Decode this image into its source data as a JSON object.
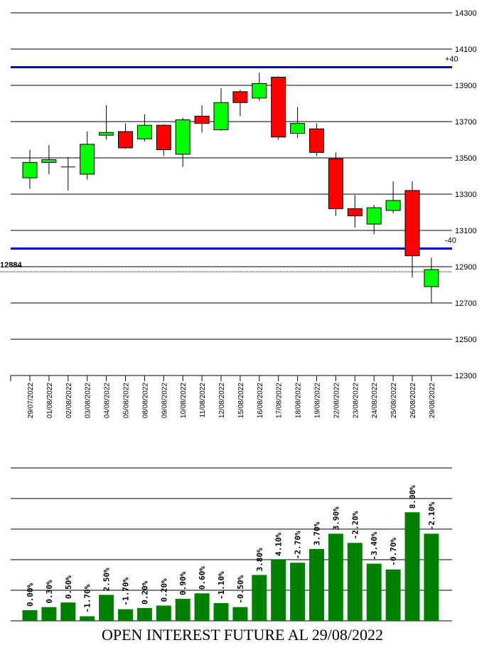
{
  "chart_data": [
    {
      "type": "candlestick",
      "title": "",
      "ylim": [
        12300,
        14300
      ],
      "yticks": [
        14300,
        14100,
        13900,
        13700,
        13500,
        13300,
        13100,
        12900,
        12700,
        12500,
        12300
      ],
      "dates": [
        "29/07/2022",
        "01/08/2022",
        "02/08/2022",
        "03/08/2022",
        "04/08/2022",
        "05/08/2022",
        "08/08/2022",
        "09/08/2022",
        "10/08/2022",
        "11/08/2022",
        "12/08/2022",
        "15/08/2022",
        "16/08/2022",
        "17/08/2022",
        "18/08/2022",
        "19/08/2022",
        "22/08/2022",
        "23/08/2022",
        "24/08/2022",
        "25/08/2022",
        "26/08/2022",
        "29/08/2022"
      ],
      "candles": [
        {
          "open": 13390,
          "high": 13545,
          "low": 13330,
          "close": 13475,
          "color": "#00ff00"
        },
        {
          "open": 13475,
          "high": 13570,
          "low": 13410,
          "close": 13490,
          "color": "#00ff00"
        },
        {
          "open": 13450,
          "high": 13505,
          "low": 13320,
          "close": 13450,
          "color": "#000000"
        },
        {
          "open": 13410,
          "high": 13645,
          "low": 13380,
          "close": 13575,
          "color": "#00ff00"
        },
        {
          "open": 13625,
          "high": 13790,
          "low": 13600,
          "close": 13640,
          "color": "#00ff00"
        },
        {
          "open": 13645,
          "high": 13690,
          "low": 13550,
          "close": 13555,
          "color": "#ff0000"
        },
        {
          "open": 13605,
          "high": 13740,
          "low": 13590,
          "close": 13680,
          "color": "#00ff00"
        },
        {
          "open": 13680,
          "high": 13685,
          "low": 13510,
          "close": 13545,
          "color": "#ff0000"
        },
        {
          "open": 13520,
          "high": 13720,
          "low": 13450,
          "close": 13710,
          "color": "#00ff00"
        },
        {
          "open": 13730,
          "high": 13790,
          "low": 13640,
          "close": 13690,
          "color": "#ff0000"
        },
        {
          "open": 13655,
          "high": 13885,
          "low": 13650,
          "close": 13805,
          "color": "#00ff00"
        },
        {
          "open": 13865,
          "high": 13875,
          "low": 13730,
          "close": 13805,
          "color": "#ff0000"
        },
        {
          "open": 13830,
          "high": 13970,
          "low": 13815,
          "close": 13910,
          "color": "#00ff00"
        },
        {
          "open": 13945,
          "high": 13950,
          "low": 13600,
          "close": 13615,
          "color": "#ff0000"
        },
        {
          "open": 13635,
          "high": 13780,
          "low": 13610,
          "close": 13690,
          "color": "#00ff00"
        },
        {
          "open": 13660,
          "high": 13690,
          "low": 13510,
          "close": 13530,
          "color": "#ff0000"
        },
        {
          "open": 13495,
          "high": 13530,
          "low": 13180,
          "close": 13220,
          "color": "#ff0000"
        },
        {
          "open": 13220,
          "high": 13295,
          "low": 13115,
          "close": 13180,
          "color": "#ff0000"
        },
        {
          "open": 13135,
          "high": 13240,
          "low": 13080,
          "close": 13225,
          "color": "#00ff00"
        },
        {
          "open": 13210,
          "high": 13370,
          "low": 13195,
          "close": 13265,
          "color": "#00ff00"
        },
        {
          "open": 13320,
          "high": 13370,
          "low": 12840,
          "close": 12960,
          "color": "#ff0000"
        },
        {
          "open": 12790,
          "high": 12950,
          "low": 12700,
          "close": 12884,
          "color": "#00ff00"
        }
      ],
      "hlines": [
        {
          "y": 14000,
          "label": "+40",
          "color": "#0000cc"
        },
        {
          "y": 13000,
          "label": "-40",
          "color": "#0000cc"
        }
      ],
      "last_price": {
        "y": 12884,
        "label": "12884"
      }
    },
    {
      "type": "bar",
      "title": "OPEN INTEREST FUTURE AL 29/08/2022",
      "color": "#008000",
      "ylim": [
        0,
        10
      ],
      "labels": [
        "0.00%",
        "0.30%",
        "0.50%",
        "-1.70%",
        "2.50%",
        "-1.70%",
        "0.20%",
        "0.20%",
        "0.90%",
        "0.60%",
        "-1.10%",
        "-0.50%",
        "3.80%",
        "4.10%",
        "-2.70%",
        "3.70%",
        "3.90%",
        "-2.20%",
        "-3.40%",
        "-0.70%",
        "8.00%",
        "-2.10%"
      ],
      "values": [
        0.35,
        0.45,
        0.6,
        0.15,
        0.85,
        0.38,
        0.42,
        0.5,
        0.72,
        0.9,
        0.58,
        0.45,
        1.5,
        2.0,
        1.9,
        2.35,
        2.85,
        2.55,
        1.87,
        1.68,
        3.55,
        2.85
      ]
    }
  ]
}
